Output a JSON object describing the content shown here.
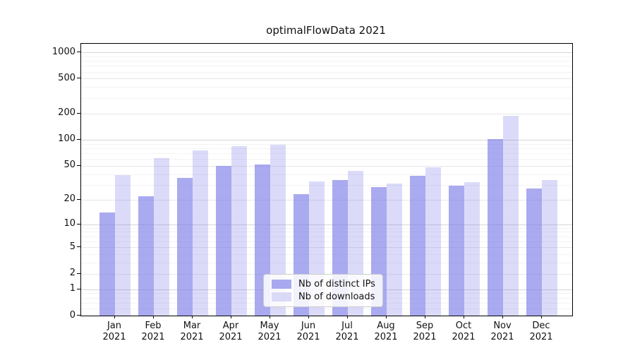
{
  "figure": {
    "title": "optimalFlowData 2021"
  },
  "chart_data": {
    "type": "bar",
    "title": "optimalFlowData 2021",
    "categories": [
      "Jan",
      "Feb",
      "Mar",
      "Apr",
      "May",
      "Jun",
      "Jul",
      "Aug",
      "Sep",
      "Oct",
      "Nov",
      "Dec"
    ],
    "year_label": "2021",
    "series": [
      {
        "name": "Nb of distinct IPs",
        "color": "#a8a8f0",
        "alpha": 0.65,
        "values": [
          14,
          22,
          36,
          50,
          52,
          23,
          34,
          28,
          38,
          29,
          102,
          27
        ]
      },
      {
        "name": "Nb of downloads",
        "color": "#dadaf7",
        "alpha": 0.28,
        "values": [
          39,
          61,
          75,
          85,
          88,
          33,
          44,
          31,
          48,
          32,
          188,
          34
        ]
      }
    ],
    "xlabel": "",
    "ylabel": "",
    "yscale": "symlog",
    "ylim": [
      0,
      1250
    ],
    "yticks": [
      0,
      1,
      2,
      5,
      10,
      20,
      50,
      100,
      200,
      500,
      1000
    ],
    "minor_gridlines": [
      0.2,
      0.4,
      0.6,
      0.8,
      3,
      4,
      6,
      7,
      8,
      9,
      30,
      40,
      60,
      70,
      80,
      90,
      300,
      400,
      600,
      700,
      800,
      900
    ],
    "grid": true,
    "legend_position": "lower center"
  },
  "colors": {
    "background": "#ffffff",
    "bar_base": "#7c7ce8",
    "grid_decade": "#d5d5d5",
    "grid_major": "#e7e7e7",
    "grid_minor": "#f3f3f3",
    "spine": "#000000",
    "text": "#111111",
    "legend_border": "#cccccc"
  }
}
